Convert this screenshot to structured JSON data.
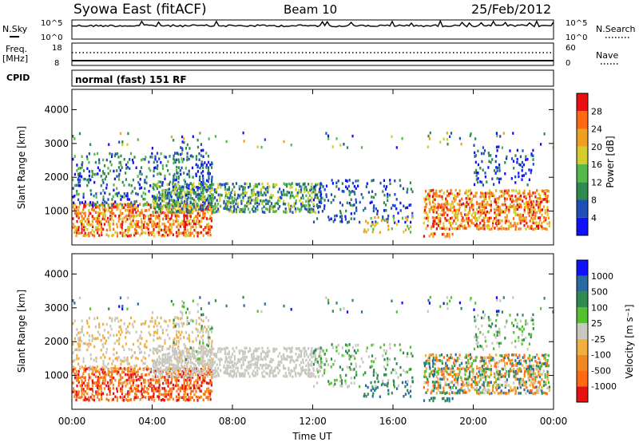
{
  "header": {
    "station": "Syowa East (fitACF)",
    "beam": "Beam 10",
    "date": "25/Feb/2012"
  },
  "noise_panel": {
    "left_label": "N.Sky",
    "right_label": "N.Search",
    "left_ticks": [
      "10^5",
      "10^0"
    ],
    "right_ticks": [
      "10^5",
      "10^0"
    ]
  },
  "freq_panel": {
    "left_label_1": "Freq.",
    "left_label_2": "[MHz]",
    "right_label": "Nave",
    "left_ticks": [
      "18",
      "8"
    ],
    "right_ticks": [
      "60",
      "0"
    ]
  },
  "cpid_panel": {
    "label": "CPID",
    "text": "normal (fast) 151 RF"
  },
  "colors": {
    "power_scale": [
      "#1010ff",
      "#1e4fb8",
      "#2e8a4e",
      "#55b84a",
      "#d4cc2a",
      "#f0a020",
      "#ff6a10",
      "#e81010"
    ],
    "velocity_scale": [
      "#e81010",
      "#ff6a10",
      "#f08a20",
      "#f0b040",
      "#c8c8c0",
      "#55c030",
      "#2e8a4e",
      "#2a6aa0",
      "#1010ff"
    ]
  },
  "chart_data": [
    {
      "type": "heatmap",
      "name": "power",
      "ylabel": "Slant Range [km]",
      "yticks": [
        "1000",
        "2000",
        "3000",
        "4000"
      ],
      "ylim": [
        0,
        4600
      ],
      "xlim_hours": [
        0,
        24
      ],
      "colorbar_label": "Power [dB]",
      "colorbar_ticks": [
        "4",
        "8",
        "12",
        "16",
        "20",
        "24",
        "28"
      ],
      "colorbar_range": [
        0,
        32
      ]
    },
    {
      "type": "heatmap",
      "name": "velocity",
      "ylabel": "Slant Range [km]",
      "yticks": [
        "1000",
        "2000",
        "3000",
        "4000"
      ],
      "ylim": [
        0,
        4600
      ],
      "xlim_hours": [
        0,
        24
      ],
      "colorbar_label": "Velocity [m s⁻¹]",
      "colorbar_ticks": [
        "-1000",
        "-500",
        "-100",
        "-25",
        "25",
        "100",
        "500",
        "1000"
      ]
    }
  ],
  "xaxis": {
    "label": "Time UT",
    "ticks": [
      "00:00",
      "04:00",
      "08:00",
      "12:00",
      "16:00",
      "20:00",
      "00:00"
    ]
  }
}
